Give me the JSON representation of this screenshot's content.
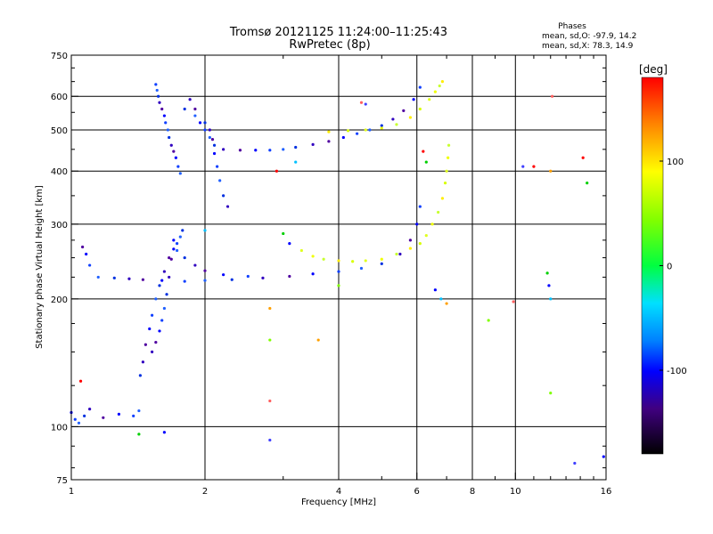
{
  "chart_data": {
    "type": "scatter",
    "title": "Tromsø 20121125 11:24:00–11:25:43",
    "subtitle": "RwPretec (8p)",
    "xlabel": "Frequency [MHz]",
    "ylabel": "Stationary phase Virtual Height [km]",
    "x_scale": "log",
    "y_scale": "log",
    "xlim": [
      1,
      16
    ],
    "ylim": [
      75,
      750
    ],
    "x_ticks": [
      1,
      2,
      4,
      6,
      8,
      10,
      16
    ],
    "x_ticklabels": [
      "1",
      "2",
      "4",
      "6",
      "8",
      "10",
      "16"
    ],
    "y_ticks": [
      75,
      100,
      200,
      300,
      400,
      500,
      600,
      750
    ],
    "y_ticklabels": [
      "75",
      "100",
      "200",
      "300",
      "400",
      "500",
      "600",
      "750"
    ],
    "x_gridlines": [
      2,
      4,
      6,
      8,
      10
    ],
    "y_gridlines": [
      100,
      200,
      300,
      400,
      500,
      600
    ],
    "grid": true,
    "stats": {
      "heading": "Phases",
      "line_o": "mean, sd,O: -97.9, 14.2",
      "line_x": "mean, sd,X:  78.3, 14.9"
    },
    "colorbar": {
      "label": "[deg]",
      "range": [
        -180,
        180
      ],
      "ticks": [
        100,
        0,
        -100
      ],
      "ticklabels": [
        "100",
        "0",
        "-100"
      ]
    },
    "series": [
      {
        "color": "blue-to-purple (O-mode, phase ≈ -98°)",
        "points": [
          [
            1.0,
            108
          ],
          [
            1.02,
            104
          ],
          [
            1.04,
            102
          ],
          [
            1.07,
            106
          ],
          [
            1.1,
            110
          ],
          [
            1.18,
            105
          ],
          [
            1.28,
            107
          ],
          [
            1.38,
            106
          ],
          [
            1.42,
            109
          ],
          [
            1.43,
            132
          ],
          [
            1.45,
            142
          ],
          [
            1.47,
            156
          ],
          [
            1.5,
            170
          ],
          [
            1.52,
            183
          ],
          [
            1.55,
            200
          ],
          [
            1.58,
            215
          ],
          [
            1.62,
            232
          ],
          [
            1.66,
            250
          ],
          [
            1.7,
            262
          ],
          [
            1.73,
            270
          ],
          [
            1.76,
            280
          ],
          [
            1.78,
            290
          ],
          [
            1.52,
            150
          ],
          [
            1.55,
            158
          ],
          [
            1.58,
            168
          ],
          [
            1.6,
            178
          ],
          [
            1.62,
            190
          ],
          [
            1.64,
            205
          ],
          [
            1.66,
            225
          ],
          [
            1.68,
            248
          ],
          [
            1.7,
            275
          ],
          [
            1.55,
            640
          ],
          [
            1.56,
            620
          ],
          [
            1.57,
            600
          ],
          [
            1.58,
            580
          ],
          [
            1.6,
            560
          ],
          [
            1.62,
            540
          ],
          [
            1.63,
            520
          ],
          [
            1.65,
            500
          ],
          [
            1.66,
            480
          ],
          [
            1.68,
            460
          ],
          [
            1.7,
            445
          ],
          [
            1.72,
            430
          ],
          [
            1.74,
            410
          ],
          [
            1.76,
            395
          ],
          [
            1.8,
            560
          ],
          [
            1.85,
            590
          ],
          [
            1.9,
            560
          ],
          [
            1.95,
            520
          ],
          [
            2.0,
            500
          ],
          [
            2.05,
            480
          ],
          [
            2.1,
            460
          ],
          [
            2.2,
            450
          ],
          [
            2.4,
            448
          ],
          [
            2.6,
            448
          ],
          [
            2.8,
            448
          ],
          [
            3.0,
            450
          ],
          [
            3.2,
            455
          ],
          [
            3.5,
            462
          ],
          [
            3.8,
            470
          ],
          [
            4.1,
            480
          ],
          [
            4.4,
            490
          ],
          [
            4.7,
            500
          ],
          [
            5.0,
            512
          ],
          [
            5.3,
            530
          ],
          [
            5.6,
            555
          ],
          [
            5.9,
            590
          ],
          [
            6.1,
            630
          ],
          [
            1.9,
            540
          ],
          [
            2.0,
            520
          ],
          [
            2.05,
            500
          ],
          [
            2.08,
            475
          ],
          [
            2.1,
            440
          ],
          [
            2.13,
            410
          ],
          [
            2.16,
            380
          ],
          [
            2.2,
            350
          ],
          [
            2.25,
            330
          ],
          [
            1.06,
            265
          ],
          [
            1.08,
            255
          ],
          [
            1.1,
            240
          ],
          [
            1.15,
            225
          ],
          [
            1.25,
            224
          ],
          [
            1.35,
            223
          ],
          [
            1.45,
            222
          ],
          [
            1.6,
            221
          ],
          [
            1.8,
            220
          ],
          [
            2.0,
            221
          ],
          [
            2.3,
            222
          ],
          [
            2.7,
            224
          ],
          [
            3.1,
            226
          ],
          [
            3.5,
            229
          ],
          [
            4.0,
            232
          ],
          [
            4.5,
            236
          ],
          [
            5.0,
            242
          ],
          [
            5.5,
            255
          ],
          [
            5.8,
            275
          ],
          [
            6.0,
            300
          ],
          [
            6.1,
            330
          ],
          [
            1.73,
            260
          ],
          [
            1.8,
            250
          ],
          [
            1.9,
            240
          ],
          [
            2.0,
            233
          ],
          [
            2.2,
            228
          ],
          [
            2.5,
            226
          ]
        ]
      },
      {
        "color": "yellow-green (X-mode, phase ≈ +78°)",
        "points": [
          [
            3.3,
            260
          ],
          [
            3.5,
            252
          ],
          [
            3.7,
            248
          ],
          [
            4.0,
            246
          ],
          [
            4.3,
            245
          ],
          [
            4.6,
            246
          ],
          [
            5.0,
            248
          ],
          [
            5.4,
            255
          ],
          [
            5.8,
            263
          ],
          [
            6.1,
            270
          ],
          [
            6.3,
            282
          ],
          [
            6.5,
            300
          ],
          [
            6.7,
            320
          ],
          [
            6.85,
            345
          ],
          [
            6.95,
            375
          ],
          [
            7.0,
            400
          ],
          [
            7.05,
            430
          ],
          [
            7.08,
            460
          ],
          [
            3.8,
            495
          ],
          [
            4.2,
            498
          ],
          [
            4.6,
            500
          ],
          [
            5.0,
            505
          ],
          [
            5.4,
            515
          ],
          [
            5.8,
            535
          ],
          [
            6.1,
            560
          ],
          [
            6.4,
            590
          ],
          [
            6.6,
            615
          ],
          [
            6.75,
            635
          ],
          [
            6.85,
            650
          ]
        ]
      },
      {
        "color": "scattered noise (mixed phase)",
        "points": [
          [
            1.05,
            128
          ],
          [
            1.42,
            96
          ],
          [
            1.62,
            97
          ],
          [
            2.0,
            290
          ],
          [
            2.8,
            190
          ],
          [
            2.8,
            160
          ],
          [
            2.8,
            115
          ],
          [
            2.8,
            93
          ],
          [
            2.9,
            400
          ],
          [
            3.0,
            285
          ],
          [
            3.1,
            270
          ],
          [
            3.2,
            420
          ],
          [
            3.6,
            160
          ],
          [
            4.0,
            215
          ],
          [
            4.5,
            580
          ],
          [
            4.6,
            575
          ],
          [
            6.2,
            445
          ],
          [
            6.3,
            420
          ],
          [
            6.6,
            210
          ],
          [
            6.8,
            200
          ],
          [
            7.0,
            195
          ],
          [
            8.7,
            178
          ],
          [
            9.9,
            197
          ],
          [
            10.4,
            410
          ],
          [
            11.0,
            410
          ],
          [
            11.8,
            230
          ],
          [
            11.9,
            215
          ],
          [
            12.0,
            200
          ],
          [
            12.0,
            400
          ],
          [
            12.0,
            120
          ],
          [
            12.1,
            600
          ],
          [
            13.6,
            82
          ],
          [
            14.2,
            430
          ],
          [
            14.5,
            375
          ],
          [
            15.8,
            85
          ]
        ]
      }
    ]
  }
}
